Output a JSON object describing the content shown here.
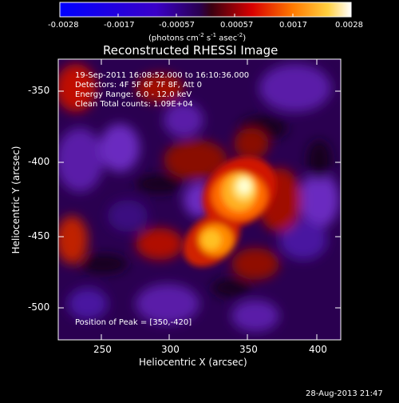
{
  "colorbar": {
    "ticks": [
      "-0.0028",
      "-0.0017",
      "-0.00057",
      "0.00057",
      "0.0017",
      "0.0028"
    ],
    "unit_label": "(photons cm",
    "unit_sup1": "-2",
    "unit_mid": " s",
    "unit_sup2": "-1",
    "unit_end": " asec",
    "unit_sup3": "-2",
    "unit_close": ")"
  },
  "plot": {
    "title": "Reconstructed RHESSI Image",
    "xlabel": "Heliocentric X (arcsec)",
    "ylabel": "Heliocentric Y (arcsec)",
    "xticks": [
      "250",
      "300",
      "350",
      "400"
    ],
    "yticks": [
      "-350",
      "-400",
      "-450",
      "-500"
    ],
    "annotations": [
      "19-Sep-2011 16:08:52.000 to 16:10:36.000",
      "Detectors: 4F 5F 6F 7F 8F, Att 0",
      "Energy Range: 6.0 - 12.0 keV",
      "Clean    Total counts: 1.09E+04"
    ],
    "peak_label": "Position of Peak = [350,-420]"
  },
  "footer": {
    "timestamp": "28-Aug-2013 21:47"
  }
}
